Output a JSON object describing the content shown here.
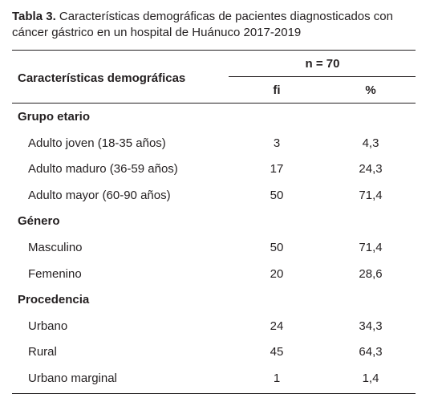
{
  "title": {
    "label": "Tabla 3.",
    "text": "Características demográficas de pacientes diagnosticados con cáncer gástrico en un hospital de Huánuco 2017-2019"
  },
  "table": {
    "header": {
      "row_label": "Características demográficas",
      "group": "n = 70",
      "columns": [
        "fi",
        "%"
      ]
    },
    "sections": [
      {
        "name": "Grupo etario",
        "rows": [
          [
            "Adulto joven (18-35 años)",
            "3",
            "4,3"
          ],
          [
            "Adulto maduro (36-59 años)",
            "17",
            "24,3"
          ],
          [
            "Adulto mayor (60-90 años)",
            "50",
            "71,4"
          ]
        ]
      },
      {
        "name": "Género",
        "rows": [
          [
            "Masculino",
            "50",
            "71,4"
          ],
          [
            "Femenino",
            "20",
            "28,6"
          ]
        ]
      },
      {
        "name": "Procedencia",
        "rows": [
          [
            "Urbano",
            "24",
            "34,3"
          ],
          [
            "Rural",
            "45",
            "64,3"
          ],
          [
            "Urbano marginal",
            "1",
            "1,4"
          ]
        ]
      }
    ]
  }
}
